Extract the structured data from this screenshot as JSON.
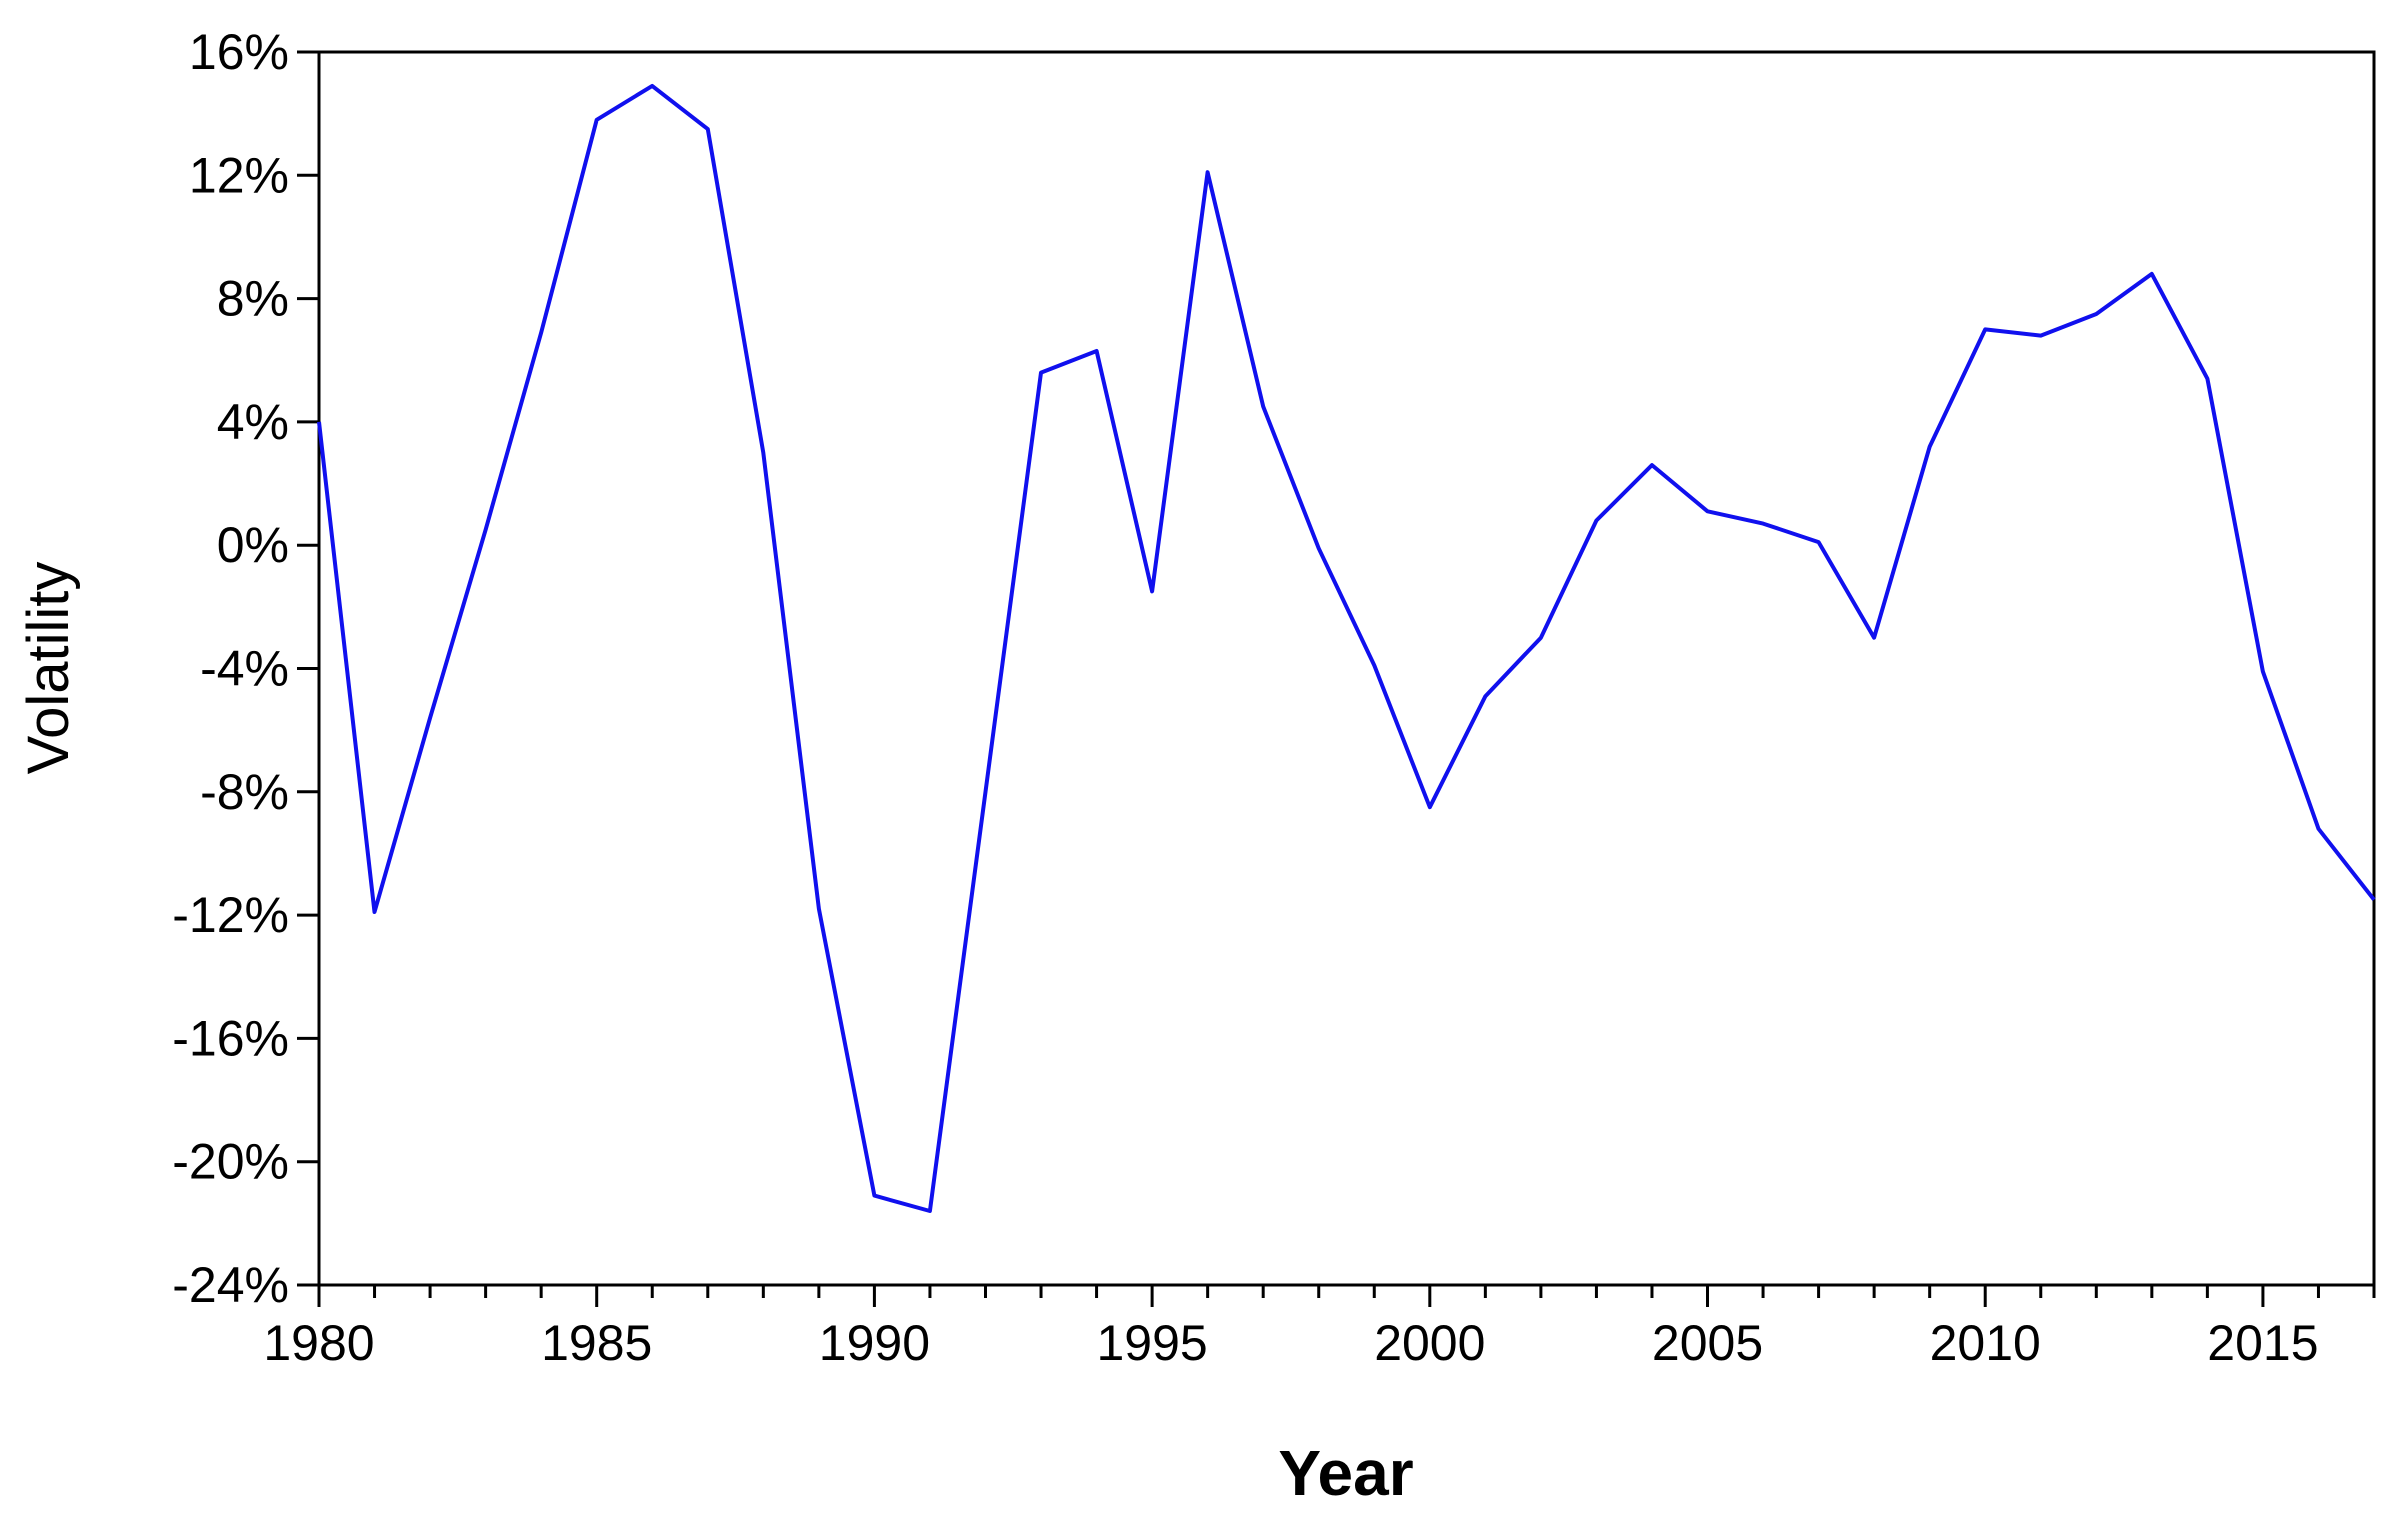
{
  "chart_data": {
    "type": "line",
    "xlabel": "Year",
    "ylabel": "Volatility",
    "xlim": [
      1980,
      2017
    ],
    "ylim": [
      -24,
      16
    ],
    "x_tick_values": [
      1980,
      1985,
      1990,
      1995,
      2000,
      2005,
      2010,
      2015
    ],
    "x_tick_labels": [
      "1980",
      "1985",
      "1990",
      "1995",
      "2000",
      "2005",
      "2010",
      "2015"
    ],
    "y_tick_values": [
      16,
      12,
      8,
      4,
      0,
      -4,
      -8,
      -12,
      -16,
      -20,
      -24
    ],
    "y_tick_labels": [
      "16%",
      "12%",
      "8%",
      "4%",
      "0%",
      "-4%",
      "-8%",
      "-12%",
      "-16%",
      "-20%",
      "-24%"
    ],
    "grid": false,
    "line_color": "#1010ee",
    "series": [
      {
        "x": [
          1980,
          1981,
          1982,
          1983,
          1984,
          1985,
          1986,
          1987,
          1988,
          1989,
          1990,
          1991,
          1992,
          1993,
          1994,
          1995,
          1996,
          1997,
          1998,
          1999,
          2000,
          2001,
          2002,
          2003,
          2004,
          2005,
          2006,
          2007,
          2008,
          2009,
          2010,
          2011,
          2012,
          2013,
          2014,
          2015,
          2016,
          2017
        ],
        "values": [
          4.0,
          -11.9,
          -5.6,
          0.5,
          6.9,
          13.8,
          14.9,
          13.5,
          3.0,
          -11.8,
          -21.1,
          -21.6,
          -8.0,
          5.6,
          6.3,
          -1.5,
          12.1,
          4.5,
          -0.1,
          -3.9,
          -8.5,
          -4.9,
          -3.0,
          0.8,
          2.6,
          1.1,
          0.7,
          0.1,
          -3.0,
          3.2,
          7.0,
          6.8,
          7.5,
          8.8,
          5.4,
          -4.1,
          -9.2,
          -11.5
        ]
      }
    ]
  }
}
